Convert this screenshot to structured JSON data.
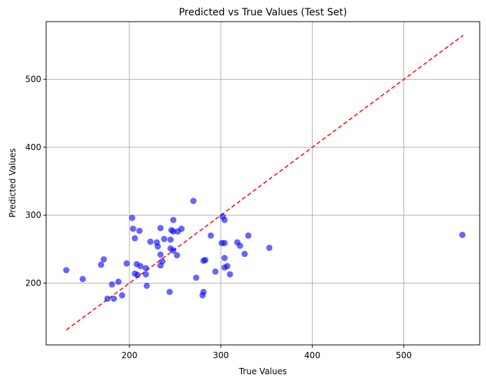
{
  "chart_data": {
    "type": "scatter",
    "title": "Predicted vs True Values (Test Set)",
    "xlabel": "True Values",
    "ylabel": "Predicted Values",
    "xlim": [
      109,
      583
    ],
    "ylim": [
      109,
      585
    ],
    "xticks": [
      200,
      300,
      400,
      500
    ],
    "yticks": [
      200,
      300,
      400,
      500
    ],
    "grid": true,
    "point_color": "#0000ff",
    "line_color": "#ff0000",
    "reference_line": {
      "style": "dashed",
      "from": [
        131,
        131
      ],
      "to": [
        565,
        565
      ]
    },
    "points": [
      {
        "x": 131,
        "y": 219
      },
      {
        "x": 149,
        "y": 206
      },
      {
        "x": 169,
        "y": 227
      },
      {
        "x": 172,
        "y": 235
      },
      {
        "x": 176,
        "y": 177
      },
      {
        "x": 181,
        "y": 198
      },
      {
        "x": 183,
        "y": 177
      },
      {
        "x": 188,
        "y": 202
      },
      {
        "x": 192,
        "y": 182
      },
      {
        "x": 197,
        "y": 229
      },
      {
        "x": 203,
        "y": 296
      },
      {
        "x": 204,
        "y": 280
      },
      {
        "x": 206,
        "y": 266
      },
      {
        "x": 206,
        "y": 214
      },
      {
        "x": 208,
        "y": 228
      },
      {
        "x": 209,
        "y": 212
      },
      {
        "x": 211,
        "y": 277
      },
      {
        "x": 212,
        "y": 225
      },
      {
        "x": 218,
        "y": 222
      },
      {
        "x": 218,
        "y": 213
      },
      {
        "x": 219,
        "y": 196
      },
      {
        "x": 223,
        "y": 261
      },
      {
        "x": 230,
        "y": 260
      },
      {
        "x": 231,
        "y": 254
      },
      {
        "x": 234,
        "y": 281
      },
      {
        "x": 234,
        "y": 242
      },
      {
        "x": 234,
        "y": 226
      },
      {
        "x": 236,
        "y": 232
      },
      {
        "x": 238,
        "y": 265
      },
      {
        "x": 244,
        "y": 187
      },
      {
        "x": 245,
        "y": 264
      },
      {
        "x": 245,
        "y": 251
      },
      {
        "x": 246,
        "y": 278
      },
      {
        "x": 248,
        "y": 293
      },
      {
        "x": 248,
        "y": 276
      },
      {
        "x": 248,
        "y": 248
      },
      {
        "x": 252,
        "y": 241
      },
      {
        "x": 253,
        "y": 276
      },
      {
        "x": 257,
        "y": 280
      },
      {
        "x": 270,
        "y": 321
      },
      {
        "x": 273,
        "y": 208
      },
      {
        "x": 280,
        "y": 182
      },
      {
        "x": 281,
        "y": 187
      },
      {
        "x": 281,
        "y": 233
      },
      {
        "x": 283,
        "y": 234
      },
      {
        "x": 289,
        "y": 270
      },
      {
        "x": 294,
        "y": 217
      },
      {
        "x": 301,
        "y": 259
      },
      {
        "x": 302,
        "y": 298
      },
      {
        "x": 304,
        "y": 293
      },
      {
        "x": 304,
        "y": 259
      },
      {
        "x": 304,
        "y": 237
      },
      {
        "x": 304,
        "y": 223
      },
      {
        "x": 307,
        "y": 225
      },
      {
        "x": 310,
        "y": 213
      },
      {
        "x": 318,
        "y": 260
      },
      {
        "x": 321,
        "y": 255
      },
      {
        "x": 326,
        "y": 243
      },
      {
        "x": 330,
        "y": 270
      },
      {
        "x": 353,
        "y": 252
      },
      {
        "x": 564,
        "y": 271
      }
    ]
  }
}
